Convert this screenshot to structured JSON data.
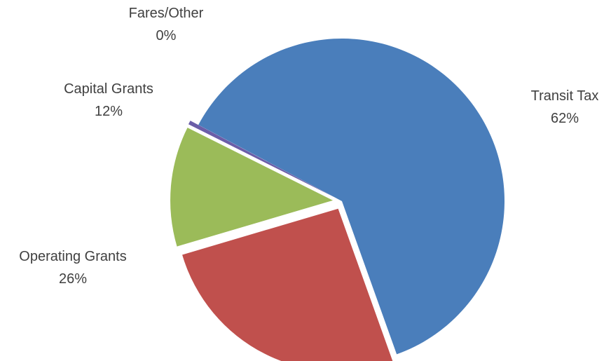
{
  "chart_data": {
    "type": "pie",
    "title": "",
    "slices": [
      {
        "label": "Transit Tax",
        "value": 62,
        "display": "62%",
        "color": "#4a7ebb"
      },
      {
        "label": "Operating Grants",
        "value": 26,
        "display": "26%",
        "color": "#c0504d"
      },
      {
        "label": "Capital Grants",
        "value": 12,
        "display": "12%",
        "color": "#9bbb59"
      },
      {
        "label": "Fares/Other",
        "value": 0.4,
        "display": "0%",
        "color": "#6b5ea8"
      }
    ],
    "legend": "none",
    "exploded": true
  }
}
